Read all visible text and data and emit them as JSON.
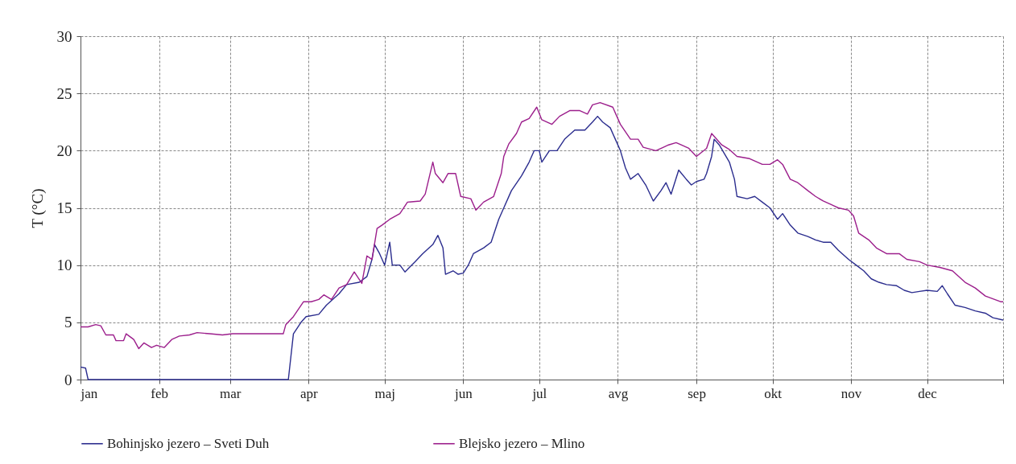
{
  "chart_data": {
    "type": "line",
    "ylabel": "T (°C)",
    "xlim": [
      "--01-01",
      "--12-31"
    ],
    "xticks": [
      {
        "value": "--01-01",
        "label": "jan"
      },
      {
        "value": "--02-01",
        "label": "feb"
      },
      {
        "value": "--03-01",
        "label": "mar"
      },
      {
        "value": "--04-01",
        "label": "apr"
      },
      {
        "value": "--05-01",
        "label": "maj"
      },
      {
        "value": "--06-01",
        "label": "jun"
      },
      {
        "value": "--07-01",
        "label": "jul"
      },
      {
        "value": "--08-01",
        "label": "avg"
      },
      {
        "value": "--09-01",
        "label": "sep"
      },
      {
        "value": "--10-01",
        "label": "okt"
      },
      {
        "value": "--11-01",
        "label": "nov"
      },
      {
        "value": "--12-01",
        "label": "dec"
      },
      {
        "value": "--12-31",
        "label": null
      }
    ],
    "ylim": [
      0,
      30
    ],
    "yticks": [
      0,
      5,
      10,
      15,
      20,
      25,
      30
    ],
    "grid": true,
    "legend": "bottom",
    "line_style": "solid",
    "series": [
      {
        "name": "Bohinjsko jezero – Sveti Duh",
        "color": "#2b2d8e",
        "x": [
          "--01-01",
          "--01-03",
          "--01-04",
          "--03-24",
          "--03-25",
          "--03-26",
          "--03-29",
          "--03-31",
          "--04-05",
          "--04-08",
          "--04-13",
          "--04-16",
          "--04-21",
          "--04-24",
          "--04-26",
          "--04-27",
          "--04-29",
          "--05-01",
          "--05-03",
          "--05-04",
          "--05-07",
          "--05-09",
          "--05-13",
          "--05-16",
          "--05-20",
          "--05-22",
          "--05-24",
          "--05-25",
          "--05-28",
          "--05-30",
          "--06-01",
          "--06-03",
          "--06-05",
          "--06-09",
          "--06-12",
          "--06-15",
          "--06-17",
          "--06-20",
          "--06-24",
          "--06-27",
          "--06-29",
          "--07-01",
          "--07-02",
          "--07-05",
          "--07-08",
          "--07-11",
          "--07-15",
          "--07-19",
          "--07-22",
          "--07-24",
          "--07-26",
          "--07-29",
          "--07-31",
          "--08-02",
          "--08-04",
          "--08-06",
          "--08-09",
          "--08-12",
          "--08-15",
          "--08-18",
          "--08-20",
          "--08-22",
          "--08-25",
          "--08-28",
          "--08-30",
          "--09-01",
          "--09-04",
          "--09-05",
          "--09-07",
          "--09-08",
          "--09-10",
          "--09-14",
          "--09-16",
          "--09-17",
          "--09-21",
          "--09-24",
          "--09-27",
          "--09-30",
          "--10-03",
          "--10-05",
          "--10-08",
          "--10-11",
          "--10-15",
          "--10-18",
          "--10-21",
          "--10-24",
          "--10-27",
          "--10-31",
          "--11-03",
          "--11-06",
          "--11-09",
          "--11-12",
          "--11-15",
          "--11-19",
          "--11-22",
          "--11-25",
          "--11-28",
          "--12-01",
          "--12-05",
          "--12-07",
          "--12-09",
          "--12-12",
          "--12-16",
          "--12-20",
          "--12-24",
          "--12-27",
          "--12-31"
        ],
        "values": [
          1.1,
          1.0,
          0,
          0,
          2,
          4,
          5,
          5.5,
          5.7,
          6.5,
          7.5,
          8.3,
          8.5,
          9,
          10.5,
          11.8,
          11,
          10,
          12,
          10,
          10,
          9.4,
          10.3,
          11,
          11.8,
          12.6,
          11.5,
          9.2,
          9.5,
          9.2,
          9.3,
          10,
          11,
          11.5,
          12,
          14,
          15,
          16.5,
          17.8,
          19,
          20,
          20,
          19,
          20,
          20,
          21,
          21.8,
          21.8,
          22.5,
          23,
          22.5,
          22,
          21,
          20,
          18.5,
          17.5,
          18,
          17,
          15.6,
          16.5,
          17.2,
          16.2,
          18.3,
          17.5,
          17,
          17.3,
          17.5,
          18,
          19.5,
          21,
          20.5,
          19,
          17.5,
          16,
          15.8,
          16,
          15.5,
          15,
          14,
          14.5,
          13.5,
          12.8,
          12.5,
          12.2,
          12,
          12,
          11.3,
          10.5,
          10,
          9.5,
          8.8,
          8.5,
          8.3,
          8.2,
          7.8,
          7.6,
          7.7,
          7.8,
          7.7,
          8.2,
          7.5,
          6.5,
          6.3,
          6,
          5.8,
          5.4,
          5.2
        ]
      },
      {
        "name": "Blejsko jezero – Mlino",
        "color": "#9c1f8c",
        "x": [
          "--01-01",
          "--01-04",
          "--01-07",
          "--01-09",
          "--01-11",
          "--01-14",
          "--01-15",
          "--01-18",
          "--01-19",
          "--01-22",
          "--01-24",
          "--01-26",
          "--01-29",
          "--01-31",
          "--02-03",
          "--02-06",
          "--02-09",
          "--02-13",
          "--02-16",
          "--02-21",
          "--02-26",
          "--03-02",
          "--03-07",
          "--03-12",
          "--03-18",
          "--03-22",
          "--03-23",
          "--03-26",
          "--03-30",
          "--04-02",
          "--04-05",
          "--04-07",
          "--04-10",
          "--04-13",
          "--04-16",
          "--04-19",
          "--04-22",
          "--04-24",
          "--04-26",
          "--04-28",
          "--04-30",
          "--05-03",
          "--05-07",
          "--05-10",
          "--05-15",
          "--05-17",
          "--05-20",
          "--05-21",
          "--05-24",
          "--05-26",
          "--05-29",
          "--05-31",
          "--06-04",
          "--06-06",
          "--06-09",
          "--06-13",
          "--06-16",
          "--06-17",
          "--06-19",
          "--06-22",
          "--06-24",
          "--06-27",
          "--06-30",
          "--07-02",
          "--07-06",
          "--07-09",
          "--07-13",
          "--07-17",
          "--07-20",
          "--07-22",
          "--07-25",
          "--07-30",
          "--08-02",
          "--08-06",
          "--08-09",
          "--08-11",
          "--08-16",
          "--08-19",
          "--08-21",
          "--08-24",
          "--08-26",
          "--08-29",
          "--09-01",
          "--09-05",
          "--09-07",
          "--09-11",
          "--09-14",
          "--09-17",
          "--09-22",
          "--09-27",
          "--09-30",
          "--10-03",
          "--10-05",
          "--10-08",
          "--10-11",
          "--10-15",
          "--10-18",
          "--10-21",
          "--10-24",
          "--10-27",
          "--10-31",
          "--11-02",
          "--11-04",
          "--11-08",
          "--11-11",
          "--11-15",
          "--11-20",
          "--11-23",
          "--11-28",
          "--12-01",
          "--12-06",
          "--12-11",
          "--12-16",
          "--12-20",
          "--12-24",
          "--12-30",
          "--12-31"
        ],
        "values": [
          4.6,
          4.6,
          4.8,
          4.7,
          3.9,
          3.9,
          3.4,
          3.4,
          4,
          3.5,
          2.7,
          3.2,
          2.8,
          3,
          2.8,
          3.5,
          3.8,
          3.9,
          4.1,
          4,
          3.9,
          4,
          4,
          4,
          4,
          4,
          4.8,
          5.5,
          6.8,
          6.8,
          7,
          7.4,
          7,
          8,
          8.3,
          9.4,
          8.4,
          10.8,
          10.5,
          13.2,
          13.5,
          14,
          14.5,
          15.5,
          15.6,
          16.2,
          19,
          18,
          17.2,
          18,
          18,
          16,
          15.8,
          14.8,
          15.5,
          16,
          18,
          19.5,
          20.6,
          21.5,
          22.5,
          22.8,
          23.8,
          22.7,
          22.3,
          23,
          23.5,
          23.5,
          23.2,
          24,
          24.2,
          23.8,
          22.3,
          21,
          21,
          20.3,
          20,
          20.3,
          20.5,
          20.7,
          20.5,
          20.2,
          19.5,
          20.2,
          21.5,
          20.5,
          20.1,
          19.5,
          19.3,
          18.8,
          18.8,
          19.2,
          18.8,
          17.5,
          17.2,
          16.5,
          16,
          15.6,
          15.3,
          15,
          14.8,
          14.3,
          12.8,
          12.2,
          11.5,
          11,
          11,
          10.5,
          10.3,
          10,
          9.8,
          9.5,
          8.5,
          8,
          7.3,
          6.8,
          6.8
        ]
      }
    ]
  }
}
